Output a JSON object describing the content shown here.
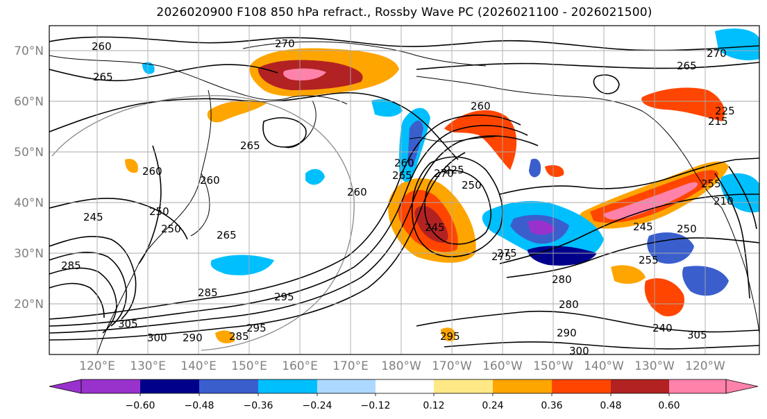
{
  "title": "2026020900 F108 850 hPa refract., Rossby Wave PC (2026021100 - 2026021500)",
  "lat_labels": [
    "70°N",
    "60°N",
    "50°N",
    "40°N",
    "30°N",
    "20°N"
  ],
  "lon_labels": [
    "120°E",
    "130°E",
    "140°E",
    "150°E",
    "160°E",
    "170°E",
    "180°W",
    "170°W",
    "160°W",
    "150°W",
    "140°W",
    "130°W",
    "120°W"
  ],
  "colorbar": {
    "colors": [
      "#9932cc",
      "#00008b",
      "#3a5fcd",
      "#00bfff",
      "#add8ff",
      "#ffffff",
      "#ffe987",
      "#ffa500",
      "#ff4500",
      "#b22222",
      "#ff82ab"
    ],
    "tick_labels": [
      "−0.60",
      "−0.48",
      "−0.36",
      "−0.24",
      "−0.12",
      "0.12",
      "0.24",
      "0.36",
      "0.48",
      "0.60"
    ]
  },
  "contour_labels": [
    "260",
    "265",
    "270",
    "265",
    "270",
    "265",
    "260",
    "260",
    "250",
    "245",
    "250",
    "260",
    "265",
    "285",
    "285",
    "295",
    "305",
    "300",
    "290",
    "295",
    "285",
    "275",
    "260",
    "265",
    "270",
    "250",
    "225",
    "245",
    "275",
    "280",
    "280",
    "290",
    "300",
    "255",
    "245",
    "250",
    "255",
    "260",
    "295",
    "305",
    "240",
    "215",
    "225",
    "210"
  ]
}
